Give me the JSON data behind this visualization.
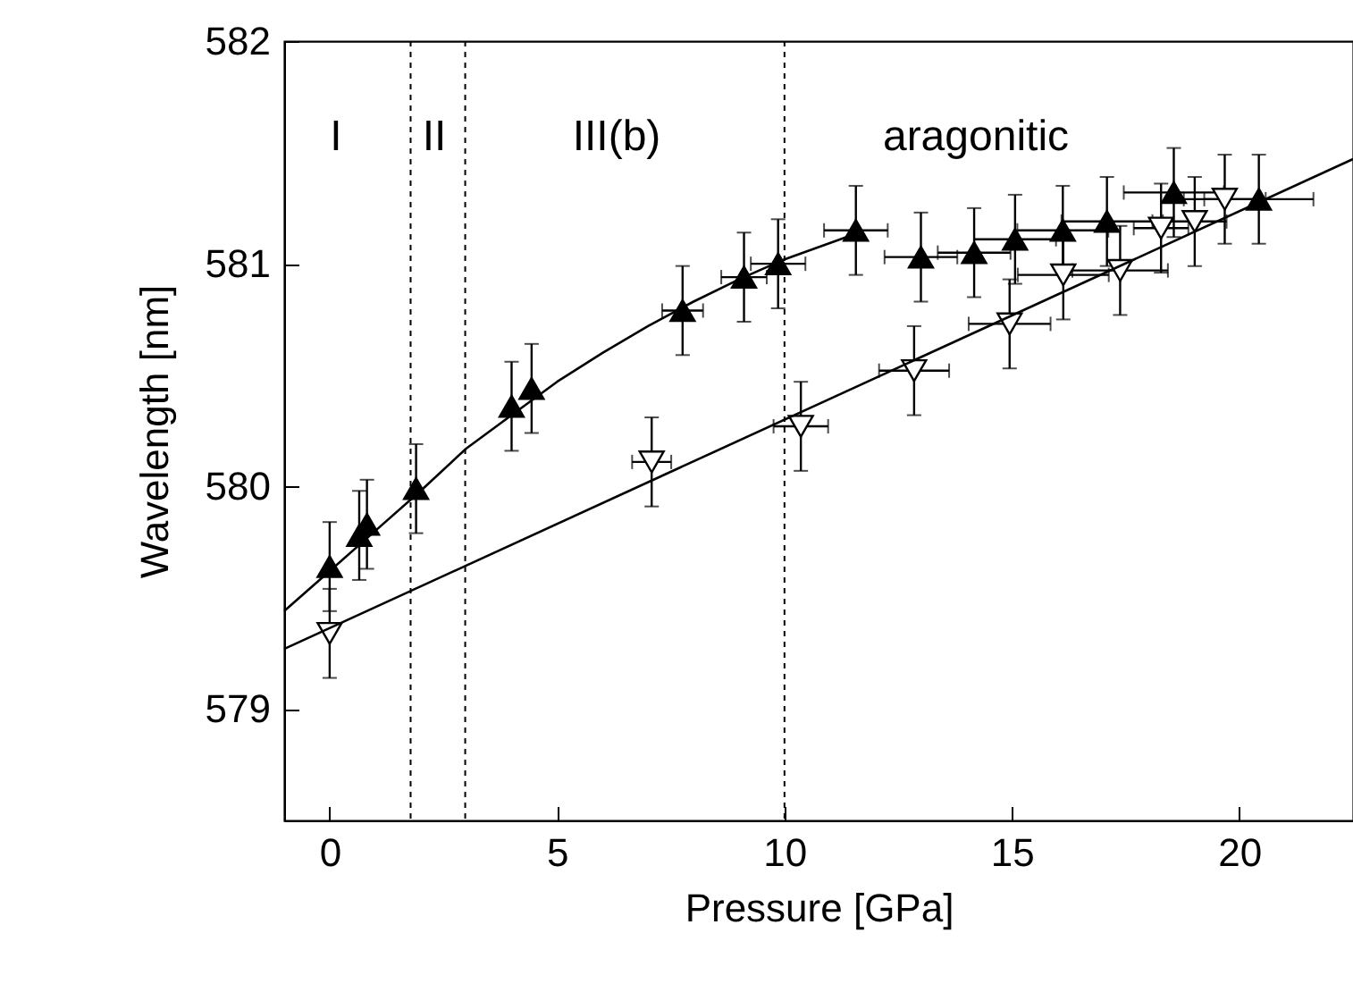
{
  "chart_data": {
    "type": "scatter",
    "xlabel": "Pressure [GPa]",
    "ylabel": "Wavelength [nm]",
    "xlim": [
      -1,
      22.5
    ],
    "xticks": [
      0,
      5,
      10,
      15,
      20
    ],
    "ylim": [
      578.5,
      582
    ],
    "yticks": [
      579,
      580,
      581,
      582
    ],
    "grid": false,
    "series": [
      {
        "color": "#000000",
        "marker": "triangle",
        "x": [
          0,
          0.65,
          0.82,
          1.9,
          4.0,
          4.44,
          7.76,
          9.11,
          9.86,
          11.57,
          13.0,
          14.17,
          15.07,
          16.12,
          17.09,
          18.56,
          20.43
        ],
        "values": [
          579.64,
          579.78,
          579.83,
          579.99,
          580.36,
          580.44,
          580.79,
          580.94,
          581.0,
          581.15,
          581.03,
          581.05,
          581.11,
          581.15,
          581.19,
          581.32,
          581.29
        ],
        "errors": [
          0.2,
          0.2,
          0.2,
          0.2,
          0.2,
          0.2,
          0.2,
          0.2,
          0.2,
          0.2,
          0.2,
          0.2,
          0.2,
          0.2,
          0.2,
          0.2,
          0.2
        ],
        "xerrors": [
          null,
          null,
          null,
          null,
          null,
          null,
          0.45,
          0.5,
          0.6,
          0.7,
          0.8,
          0.8,
          0.9,
          1.0,
          1.0,
          1.1,
          1.2
        ]
      },
      {
        "color": "#000000",
        "marker": "triangle-down",
        "x": [
          0,
          7.08,
          10.36,
          12.85,
          14.95,
          16.13,
          17.38,
          18.28,
          19.02,
          19.68
        ],
        "values": [
          579.34,
          580.11,
          580.27,
          580.52,
          580.73,
          580.95,
          580.97,
          581.16,
          581.19,
          581.29
        ],
        "errors": [
          0.2,
          0.2,
          0.2,
          0.2,
          0.2,
          0.2,
          0.2,
          0.2,
          0.2,
          0.2
        ],
        "xerrors": [
          null,
          0.43,
          0.6,
          0.77,
          0.9,
          1.0,
          1.05,
          0.6,
          0.7,
          0.9
        ]
      },
      {
        "type": "line",
        "color": "#000000",
        "marker": "none",
        "x": [
          -1,
          0,
          1,
          2,
          3,
          4,
          5,
          6,
          7,
          8,
          9,
          10,
          11.5
        ],
        "values": [
          579.44,
          579.62,
          579.8,
          579.98,
          580.17,
          580.32,
          580.47,
          580.6,
          580.72,
          580.83,
          580.93,
          581.02,
          581.13
        ]
      },
      {
        "type": "line",
        "color": "#000000",
        "marker": "none",
        "x": [
          -1,
          22.5
        ],
        "values": [
          579.27,
          581.47
        ]
      }
    ],
    "ref_lines": [
      {
        "axis": "x",
        "value": 1.78,
        "line_style": "dashed",
        "color": "#000000"
      },
      {
        "axis": "x",
        "value": 2.98,
        "line_style": "dashed",
        "color": "#000000"
      },
      {
        "axis": "x",
        "value": 10,
        "line_style": "dashed",
        "color": "#000000"
      }
    ],
    "annotations": [
      "I",
      "II",
      "III(b)",
      "aragonitic"
    ]
  }
}
